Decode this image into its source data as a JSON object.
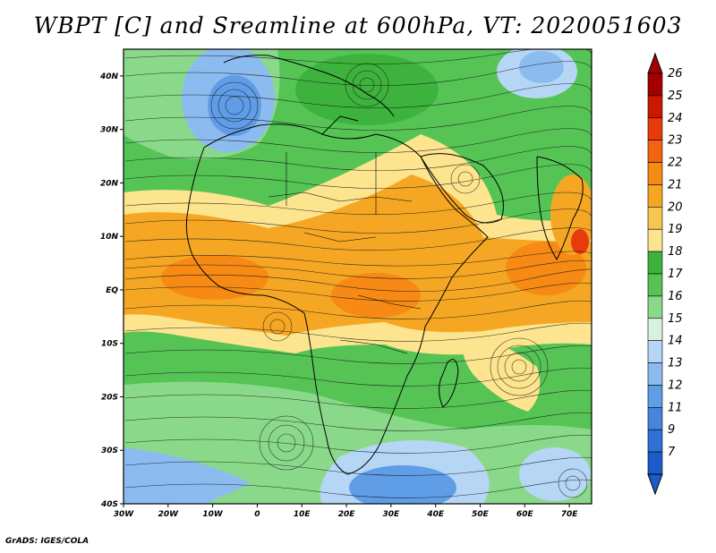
{
  "title": "WBPT [C] and Sreamline at 600hPa, VT: 2020051603",
  "credit": "GrADS: IGES/COLA",
  "map": {
    "lon_range": [
      -30,
      75
    ],
    "lat_range": [
      -40,
      45
    ],
    "lon_ticks": [
      {
        "value": -30,
        "label": "30W"
      },
      {
        "value": -20,
        "label": "20W"
      },
      {
        "value": -10,
        "label": "10W"
      },
      {
        "value": 0,
        "label": "0"
      },
      {
        "value": 10,
        "label": "10E"
      },
      {
        "value": 20,
        "label": "20E"
      },
      {
        "value": 30,
        "label": "30E"
      },
      {
        "value": 40,
        "label": "40E"
      },
      {
        "value": 50,
        "label": "50E"
      },
      {
        "value": 60,
        "label": "60E"
      },
      {
        "value": 70,
        "label": "70E"
      }
    ],
    "lat_ticks": [
      {
        "value": 40,
        "label": "40N"
      },
      {
        "value": 30,
        "label": "30N"
      },
      {
        "value": 20,
        "label": "20N"
      },
      {
        "value": 10,
        "label": "10N"
      },
      {
        "value": 0,
        "label": "EQ"
      },
      {
        "value": -10,
        "label": "10S"
      },
      {
        "value": -20,
        "label": "20S"
      },
      {
        "value": -30,
        "label": "30S"
      },
      {
        "value": -40,
        "label": "40S"
      }
    ]
  },
  "colorbar": {
    "levels": [
      "26",
      "25",
      "24",
      "23",
      "22",
      "21",
      "20",
      "19",
      "18",
      "17",
      "16",
      "15",
      "14",
      "13",
      "12",
      "11",
      "9",
      "7"
    ],
    "colors": [
      "#a50000",
      "#cc1800",
      "#e83a0a",
      "#f26411",
      "#f68a14",
      "#f5a724",
      "#f7c552",
      "#fde48e",
      "#3db33d",
      "#55c455",
      "#8ad98a",
      "#d8f2e2",
      "#b5d6f5",
      "#8cbcef",
      "#5f9de6",
      "#4684de",
      "#2f6fd6",
      "#1b5cc9"
    ]
  },
  "chart_data": {
    "type": "heatmap",
    "title": "WBPT [C] and Sreamline at 600hPa, VT: 2020051603",
    "x_ticks": [
      "30W",
      "20W",
      "10W",
      "0",
      "10E",
      "20E",
      "30E",
      "40E",
      "50E",
      "60E",
      "70E"
    ],
    "y_ticks": [
      "40N",
      "30N",
      "20N",
      "10N",
      "EQ",
      "10S",
      "20S",
      "30S",
      "40S"
    ],
    "xlim": [
      -30,
      75
    ],
    "ylim": [
      -40,
      45
    ],
    "colorbar_levels": [
      7,
      9,
      11,
      12,
      13,
      14,
      15,
      16,
      17,
      18,
      19,
      20,
      21,
      22,
      23,
      24,
      25,
      26
    ]
  }
}
